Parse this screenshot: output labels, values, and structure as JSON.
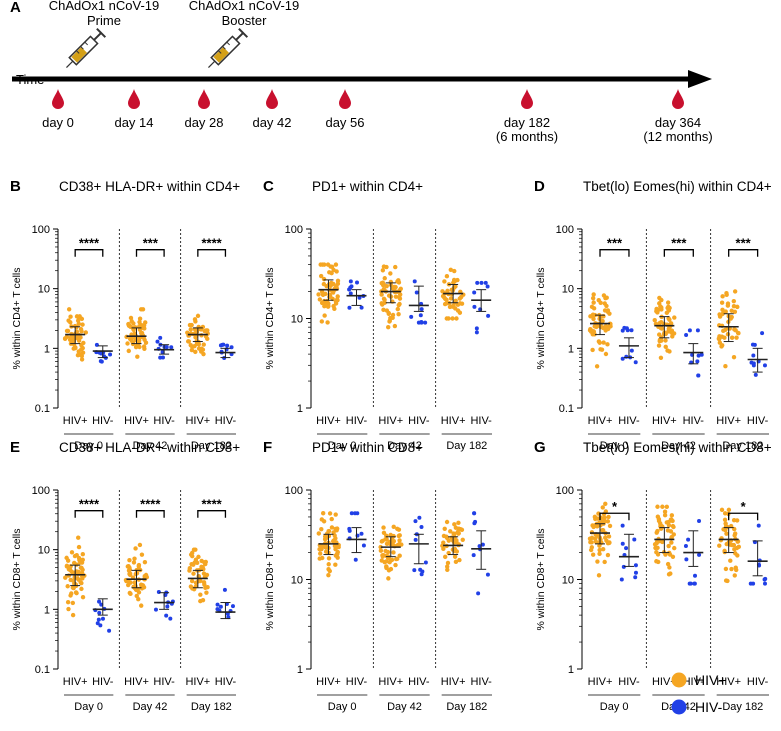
{
  "timeline": {
    "panel_letter": "A",
    "time_label": "Time",
    "injections": [
      {
        "line1": "ChAdOx1 nCoV-19",
        "line2": "Prime"
      },
      {
        "line1": "ChAdOx1 nCoV-19",
        "line2": "Booster"
      }
    ],
    "timepoints": [
      {
        "label": "day 0",
        "sub": ""
      },
      {
        "label": "day 14",
        "sub": ""
      },
      {
        "label": "day 28",
        "sub": ""
      },
      {
        "label": "day 42",
        "sub": ""
      },
      {
        "label": "day 56",
        "sub": ""
      },
      {
        "label": "day 182",
        "sub": "(6 months)"
      },
      {
        "label": "day 364",
        "sub": "(12 months)"
      }
    ]
  },
  "colors": {
    "hiv_pos": "#F5A623",
    "hiv_neg": "#2140E6",
    "syringe_fill": "#D4A017",
    "blood_drop": "#C8102E"
  },
  "legend": [
    {
      "label": "HIV+",
      "color": "#F5A623"
    },
    {
      "label": "HIV-",
      "color": "#2140E6"
    }
  ],
  "chart_data": [
    {
      "panel": "B",
      "type": "scatter",
      "title": "CD38+ HLA-DR+ within CD4+",
      "ylabel": "% within CD4+ T cells",
      "yscale": "log",
      "ylim": [
        0.1,
        100
      ],
      "yticks": [
        "0.1",
        "1",
        "10",
        "100"
      ],
      "groups": [
        "Day 0",
        "Day 42",
        "Day 182"
      ],
      "categories": [
        "HIV+",
        "HIV-"
      ],
      "series": [
        {
          "group": "Day 0",
          "category": "HIV+",
          "n": 60,
          "median": 1.7,
          "q1": 1.2,
          "q3": 2.3,
          "min": 0.6,
          "max": 5.0
        },
        {
          "group": "Day 0",
          "category": "HIV-",
          "n": 10,
          "median": 0.9,
          "q1": 0.7,
          "q3": 1.1,
          "min": 0.6,
          "max": 1.4
        },
        {
          "group": "Day 42",
          "category": "HIV+",
          "n": 55,
          "median": 1.6,
          "q1": 1.2,
          "q3": 2.2,
          "min": 0.6,
          "max": 4.5
        },
        {
          "group": "Day 42",
          "category": "HIV-",
          "n": 10,
          "median": 0.95,
          "q1": 0.8,
          "q3": 1.15,
          "min": 0.7,
          "max": 1.5
        },
        {
          "group": "Day 182",
          "category": "HIV+",
          "n": 45,
          "median": 1.7,
          "q1": 1.3,
          "q3": 2.2,
          "min": 0.8,
          "max": 3.5
        },
        {
          "group": "Day 182",
          "category": "HIV-",
          "n": 10,
          "median": 0.85,
          "q1": 0.7,
          "q3": 1.0,
          "min": 0.55,
          "max": 1.4
        }
      ],
      "significance": [
        {
          "group": "Day 0",
          "label": "****",
          "at": 45
        },
        {
          "group": "Day 42",
          "label": "***",
          "at": 45
        },
        {
          "group": "Day 182",
          "label": "****",
          "at": 45
        }
      ]
    },
    {
      "panel": "C",
      "type": "scatter",
      "title": "PD1+ within CD4+",
      "ylabel": "% within CD4+ T cells",
      "yscale": "log",
      "ylim": [
        1,
        100
      ],
      "yticks": [
        "1",
        "10",
        "100"
      ],
      "groups": [
        "Day 0",
        "Day 42",
        "Day 182"
      ],
      "categories": [
        "HIV+",
        "HIV-"
      ],
      "series": [
        {
          "group": "Day 0",
          "category": "HIV+",
          "n": 60,
          "median": 21,
          "q1": 16,
          "q3": 27,
          "min": 9,
          "max": 40
        },
        {
          "group": "Day 0",
          "category": "HIV-",
          "n": 10,
          "median": 18,
          "q1": 14,
          "q3": 21,
          "min": 11,
          "max": 26
        },
        {
          "group": "Day 42",
          "category": "HIV+",
          "n": 55,
          "median": 20,
          "q1": 15,
          "q3": 25,
          "min": 8,
          "max": 38
        },
        {
          "group": "Day 42",
          "category": "HIV-",
          "n": 10,
          "median": 14,
          "q1": 12,
          "q3": 23,
          "min": 9,
          "max": 26
        },
        {
          "group": "Day 182",
          "category": "HIV+",
          "n": 45,
          "median": 19,
          "q1": 15,
          "q3": 24,
          "min": 10,
          "max": 35
        },
        {
          "group": "Day 182",
          "category": "HIV-",
          "n": 10,
          "median": 16,
          "q1": 12,
          "q3": 21,
          "min": 7,
          "max": 25
        }
      ],
      "significance": []
    },
    {
      "panel": "D",
      "type": "scatter",
      "title": "Tbet(lo) Eomes(hi) within CD4+",
      "ylabel": "% within CD4+ T cells",
      "yscale": "log",
      "ylim": [
        0.1,
        100
      ],
      "yticks": [
        "0.1",
        "1",
        "10",
        "100"
      ],
      "groups": [
        "Day 0",
        "Day 42",
        "Day 182"
      ],
      "categories": [
        "HIV+",
        "HIV-"
      ],
      "series": [
        {
          "group": "Day 0",
          "category": "HIV+",
          "n": 60,
          "median": 2.6,
          "q1": 1.7,
          "q3": 3.6,
          "min": 0.5,
          "max": 8
        },
        {
          "group": "Day 0",
          "category": "HIV-",
          "n": 10,
          "median": 1.1,
          "q1": 0.7,
          "q3": 1.5,
          "min": 0.4,
          "max": 2.2
        },
        {
          "group": "Day 42",
          "category": "HIV+",
          "n": 55,
          "median": 2.4,
          "q1": 1.5,
          "q3": 3.4,
          "min": 0.4,
          "max": 7
        },
        {
          "group": "Day 42",
          "category": "HIV-",
          "n": 10,
          "median": 0.85,
          "q1": 0.55,
          "q3": 1.2,
          "min": 0.35,
          "max": 2.0
        },
        {
          "group": "Day 182",
          "category": "HIV+",
          "n": 45,
          "median": 2.3,
          "q1": 1.3,
          "q3": 3.8,
          "min": 0.2,
          "max": 9
        },
        {
          "group": "Day 182",
          "category": "HIV-",
          "n": 10,
          "median": 0.65,
          "q1": 0.4,
          "q3": 1.0,
          "min": 0.25,
          "max": 1.8
        }
      ],
      "significance": [
        {
          "group": "Day 0",
          "label": "***",
          "at": 45
        },
        {
          "group": "Day 42",
          "label": "***",
          "at": 45
        },
        {
          "group": "Day 182",
          "label": "***",
          "at": 45
        }
      ]
    },
    {
      "panel": "E",
      "type": "scatter",
      "title": "CD38+ HLA-DR+ within CD8+",
      "ylabel": "% within CD8+ T cells",
      "yscale": "log",
      "ylim": [
        0.1,
        100
      ],
      "yticks": [
        "0.1",
        "1",
        "10",
        "100"
      ],
      "groups": [
        "Day 0",
        "Day 42",
        "Day 182"
      ],
      "categories": [
        "HIV+",
        "HIV-"
      ],
      "series": [
        {
          "group": "Day 0",
          "category": "HIV+",
          "n": 60,
          "median": 3.8,
          "q1": 2.5,
          "q3": 5.5,
          "min": 0.8,
          "max": 20
        },
        {
          "group": "Day 0",
          "category": "HIV-",
          "n": 10,
          "median": 1.0,
          "q1": 0.8,
          "q3": 1.5,
          "min": 0.3,
          "max": 2.8
        },
        {
          "group": "Day 42",
          "category": "HIV+",
          "n": 55,
          "median": 3.2,
          "q1": 2.3,
          "q3": 4.5,
          "min": 1.0,
          "max": 12
        },
        {
          "group": "Day 42",
          "category": "HIV-",
          "n": 10,
          "median": 1.3,
          "q1": 1.0,
          "q3": 1.9,
          "min": 0.7,
          "max": 2.5
        },
        {
          "group": "Day 182",
          "category": "HIV+",
          "n": 45,
          "median": 3.3,
          "q1": 2.3,
          "q3": 4.5,
          "min": 1.2,
          "max": 10
        },
        {
          "group": "Day 182",
          "category": "HIV-",
          "n": 10,
          "median": 0.9,
          "q1": 0.7,
          "q3": 1.3,
          "min": 0.4,
          "max": 2.2
        }
      ],
      "significance": [
        {
          "group": "Day 0",
          "label": "****",
          "at": 45
        },
        {
          "group": "Day 42",
          "label": "****",
          "at": 45
        },
        {
          "group": "Day 182",
          "label": "****",
          "at": 45
        }
      ]
    },
    {
      "panel": "F",
      "type": "scatter",
      "title": "PD1+ within CD8+",
      "ylabel": "% within CD8+ T cells",
      "yscale": "log",
      "ylim": [
        1,
        100
      ],
      "yticks": [
        "1",
        "10",
        "100"
      ],
      "groups": [
        "Day 0",
        "Day 42",
        "Day 182"
      ],
      "categories": [
        "HIV+",
        "HIV-"
      ],
      "series": [
        {
          "group": "Day 0",
          "category": "HIV+",
          "n": 60,
          "median": 25,
          "q1": 19,
          "q3": 32,
          "min": 10,
          "max": 55
        },
        {
          "group": "Day 0",
          "category": "HIV-",
          "n": 10,
          "median": 28,
          "q1": 20,
          "q3": 38,
          "min": 12,
          "max": 55
        },
        {
          "group": "Day 42",
          "category": "HIV+",
          "n": 55,
          "median": 23,
          "q1": 18,
          "q3": 30,
          "min": 10,
          "max": 50
        },
        {
          "group": "Day 42",
          "category": "HIV-",
          "n": 10,
          "median": 25,
          "q1": 15,
          "q3": 32,
          "min": 9,
          "max": 55
        },
        {
          "group": "Day 182",
          "category": "HIV+",
          "n": 45,
          "median": 24,
          "q1": 19,
          "q3": 30,
          "min": 10,
          "max": 45
        },
        {
          "group": "Day 182",
          "category": "HIV-",
          "n": 10,
          "median": 22,
          "q1": 13,
          "q3": 35,
          "min": 7,
          "max": 55
        }
      ],
      "significance": []
    },
    {
      "panel": "G",
      "type": "scatter",
      "title": "Tbet(lo) Eomes(hi) within CD8+",
      "ylabel": "% within CD8+ T cells",
      "yscale": "log",
      "ylim": [
        1,
        100
      ],
      "yticks": [
        "1",
        "10",
        "100"
      ],
      "groups": [
        "Day 0",
        "Day 42",
        "Day 182"
      ],
      "categories": [
        "HIV+",
        "HIV-"
      ],
      "series": [
        {
          "group": "Day 0",
          "category": "HIV+",
          "n": 60,
          "median": 33,
          "q1": 25,
          "q3": 42,
          "min": 9,
          "max": 70
        },
        {
          "group": "Day 0",
          "category": "HIV-",
          "n": 10,
          "median": 18,
          "q1": 14,
          "q3": 32,
          "min": 10,
          "max": 40
        },
        {
          "group": "Day 42",
          "category": "HIV+",
          "n": 55,
          "median": 28,
          "q1": 20,
          "q3": 38,
          "min": 8,
          "max": 65
        },
        {
          "group": "Day 42",
          "category": "HIV-",
          "n": 10,
          "median": 20,
          "q1": 14,
          "q3": 35,
          "min": 9,
          "max": 45
        },
        {
          "group": "Day 182",
          "category": "HIV+",
          "n": 45,
          "median": 28,
          "q1": 20,
          "q3": 38,
          "min": 4,
          "max": 60
        },
        {
          "group": "Day 182",
          "category": "HIV-",
          "n": 10,
          "median": 16,
          "q1": 11,
          "q3": 27,
          "min": 9,
          "max": 40
        }
      ],
      "significance": [
        {
          "group": "Day 0",
          "label": "*",
          "at": 55
        },
        {
          "group": "Day 182",
          "label": "*",
          "at": 55
        }
      ]
    }
  ]
}
